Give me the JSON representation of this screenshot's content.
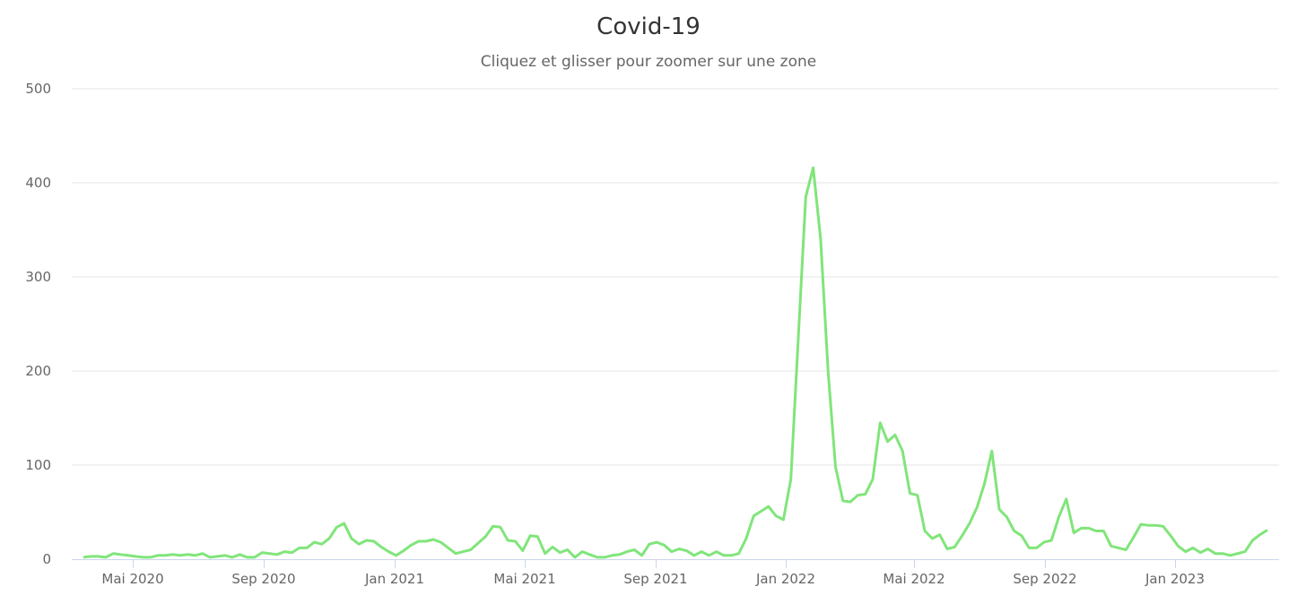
{
  "header": {
    "title": "Covid-19",
    "subtitle": "Cliquez et glisser pour zoomer sur une zone"
  },
  "colors": {
    "series": "#80e57a",
    "grid": "#e6e6e6",
    "axis": "#ccd6eb",
    "text": "#666666",
    "title": "#333333"
  },
  "chart_data": {
    "type": "line",
    "title": "Covid-19",
    "subtitle": "Cliquez et glisser pour zoomer sur une zone",
    "xlabel": "",
    "ylabel": "",
    "ylim": [
      0,
      500
    ],
    "yticks": [
      0,
      100,
      200,
      300,
      400,
      500
    ],
    "xticks": [
      "Mai 2020",
      "Sep 2020",
      "Jan 2021",
      "Mai 2021",
      "Sep 2021",
      "Jan 2022",
      "Mai 2022",
      "Sep 2022",
      "Jan 2023"
    ],
    "x_start": "2020-03 (weekly)",
    "grid": true,
    "legend": false,
    "series": [
      {
        "name": "Covid-19",
        "values": [
          2,
          3,
          3,
          2,
          6,
          5,
          4,
          3,
          2,
          2,
          4,
          4,
          5,
          4,
          5,
          4,
          6,
          2,
          3,
          4,
          2,
          5,
          2,
          2,
          7,
          6,
          5,
          8,
          7,
          12,
          12,
          18,
          16,
          22,
          34,
          38,
          22,
          16,
          20,
          19,
          13,
          8,
          4,
          9,
          15,
          19,
          19,
          21,
          18,
          12,
          6,
          8,
          10,
          17,
          24,
          35,
          34,
          20,
          19,
          9,
          25,
          24,
          6,
          13,
          7,
          10,
          2,
          8,
          5,
          2,
          2,
          4,
          5,
          8,
          10,
          4,
          16,
          18,
          15,
          8,
          11,
          9,
          4,
          8,
          4,
          8,
          4,
          4,
          6,
          22,
          46,
          51,
          56,
          46,
          42,
          85,
          235,
          385,
          416,
          340,
          200,
          98,
          62,
          61,
          68,
          69,
          85,
          145,
          125,
          132,
          115,
          70,
          68,
          30,
          22,
          26,
          11,
          13,
          25,
          38,
          55,
          80,
          115,
          53,
          45,
          30,
          25,
          12,
          12,
          18,
          20,
          45,
          64,
          28,
          33,
          33,
          30,
          30,
          14,
          12,
          10,
          23,
          37,
          36,
          36,
          35,
          25,
          14,
          8,
          12,
          7,
          11,
          6,
          6,
          4,
          6,
          8,
          20,
          26,
          31
        ]
      }
    ]
  }
}
